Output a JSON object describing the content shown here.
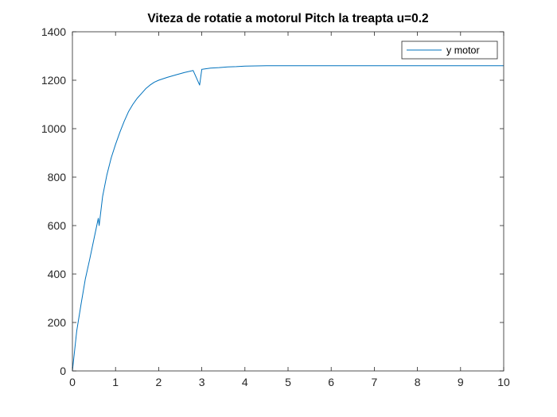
{
  "chart_data": {
    "type": "line",
    "title": "Viteza de rotatie a motorul Pitch la treapta u=0.2",
    "xlabel": "",
    "ylabel": "",
    "xlim": [
      0,
      10
    ],
    "ylim": [
      0,
      1400
    ],
    "xticks": [
      0,
      1,
      2,
      3,
      4,
      5,
      6,
      7,
      8,
      9,
      10
    ],
    "yticks": [
      0,
      200,
      400,
      600,
      800,
      1000,
      1200,
      1400
    ],
    "grid": false,
    "legend_position": "top-right",
    "series": [
      {
        "name": "y motor",
        "color": "#0072BD",
        "x": [
          0,
          0.1,
          0.2,
          0.3,
          0.4,
          0.5,
          0.6,
          0.62,
          0.7,
          0.8,
          0.9,
          1.0,
          1.1,
          1.2,
          1.3,
          1.4,
          1.5,
          1.6,
          1.7,
          1.8,
          1.9,
          2.0,
          2.2,
          2.4,
          2.6,
          2.8,
          2.95,
          3.0,
          3.2,
          3.4,
          3.6,
          3.8,
          4.0,
          4.5,
          5.0,
          5.5,
          6.0,
          6.5,
          7.0,
          7.5,
          8.0,
          8.5,
          9.0,
          9.5,
          10.0
        ],
        "values": [
          0,
          165,
          275,
          380,
          460,
          545,
          630,
          600,
          720,
          810,
          880,
          935,
          985,
          1030,
          1070,
          1100,
          1125,
          1145,
          1165,
          1180,
          1192,
          1200,
          1212,
          1222,
          1232,
          1240,
          1180,
          1245,
          1250,
          1252,
          1255,
          1256,
          1258,
          1260,
          1260,
          1260,
          1260,
          1260,
          1260,
          1260,
          1260,
          1260,
          1260,
          1260,
          1260
        ]
      }
    ]
  }
}
